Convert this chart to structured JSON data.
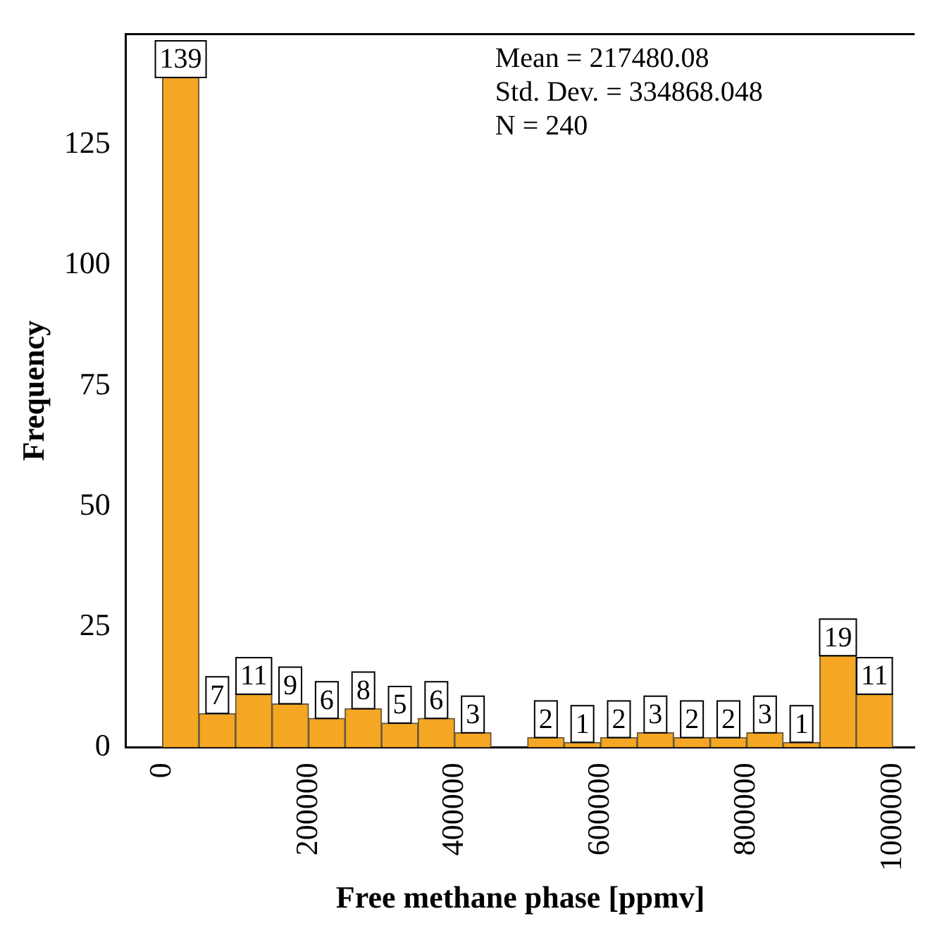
{
  "chart_data": {
    "type": "histogram",
    "xlabel": "Free methane phase [ppmv]",
    "ylabel": "Frequency",
    "bins": [
      0,
      50000,
      100000,
      150000,
      200000,
      250000,
      300000,
      350000,
      400000,
      450000,
      500000,
      550000,
      600000,
      650000,
      700000,
      750000,
      800000,
      850000,
      900000,
      950000,
      1000000
    ],
    "values": [
      139,
      7,
      11,
      9,
      6,
      8,
      5,
      6,
      3,
      0,
      2,
      1,
      2,
      3,
      2,
      2,
      3,
      1,
      19,
      11
    ],
    "value_labels": [
      "139",
      "7",
      "11",
      "9",
      "6",
      "8",
      "5",
      "6",
      "3",
      null,
      "2",
      "1",
      "2",
      "3",
      "2",
      "2",
      "3",
      "1",
      "19",
      "11"
    ],
    "color": "#f5a623",
    "xlim": [
      -50000,
      1030000
    ],
    "xticks": [
      0,
      200000,
      400000,
      600000,
      800000,
      1000000
    ],
    "ylim": [
      0,
      148
    ],
    "yticks": [
      0,
      25,
      50,
      75,
      100,
      125
    ],
    "annotations": [
      "Mean = 217480.08",
      "Std. Dev. = 334868.048",
      "N = 240"
    ]
  }
}
